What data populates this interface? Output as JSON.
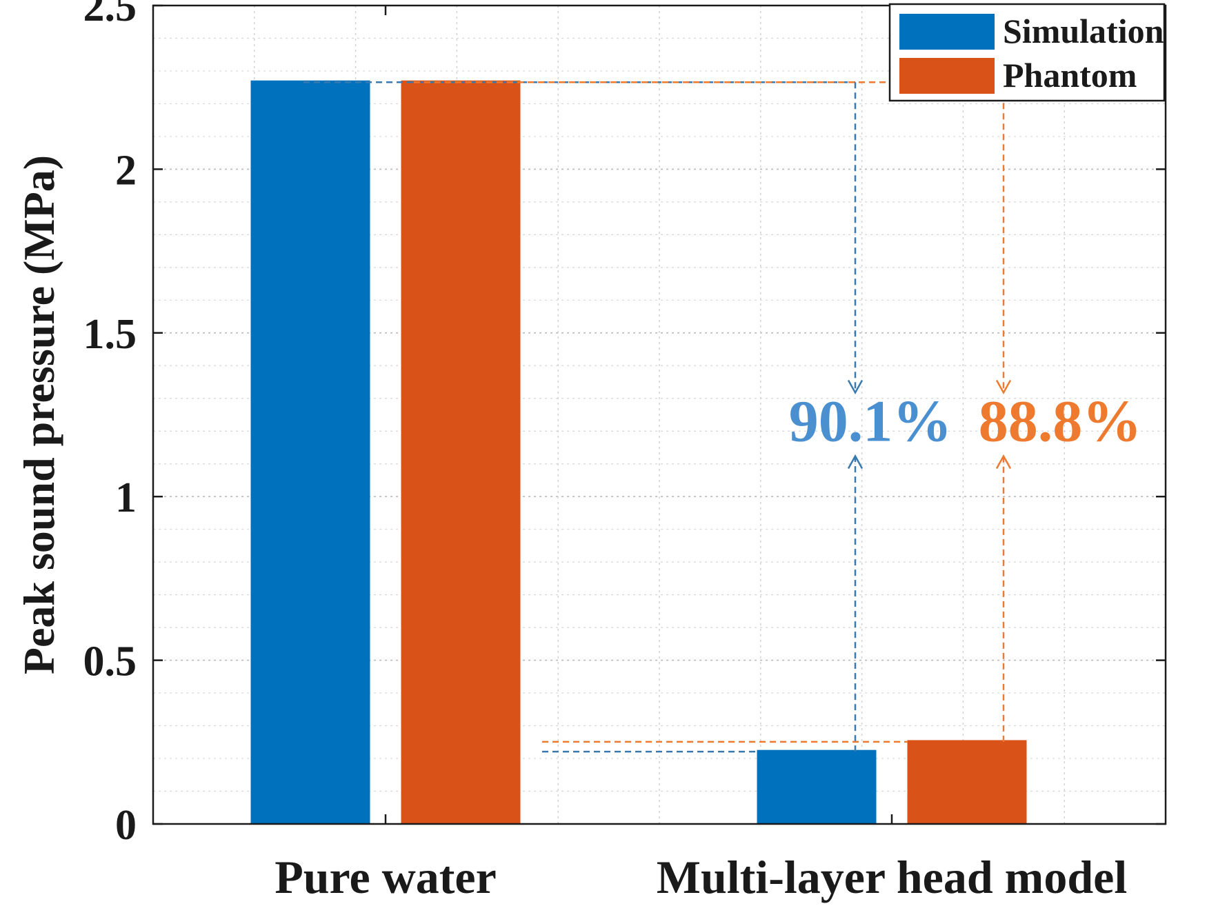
{
  "chart_data": {
    "type": "bar",
    "categories": [
      "Pure water",
      "Multi-layer head model"
    ],
    "series": [
      {
        "name": "Simulation",
        "values": [
          2.27,
          0.225
        ],
        "color": "#0072BD"
      },
      {
        "name": "Phantom",
        "values": [
          2.27,
          0.255
        ],
        "color": "#D95319"
      }
    ],
    "ylabel": "Peak sound pressure (MPa)",
    "ylim": [
      0,
      2.5
    ],
    "yticks": [
      "0",
      "0.5",
      "1",
      "1.5",
      "2",
      "2.5"
    ],
    "grid": true,
    "legend": "top-right",
    "annotations": [
      {
        "text": "90.1%",
        "series": "Simulation",
        "color": "#4A90D0"
      },
      {
        "text": "88.8%",
        "series": "Phantom",
        "color": "#EE7A30"
      }
    ]
  }
}
